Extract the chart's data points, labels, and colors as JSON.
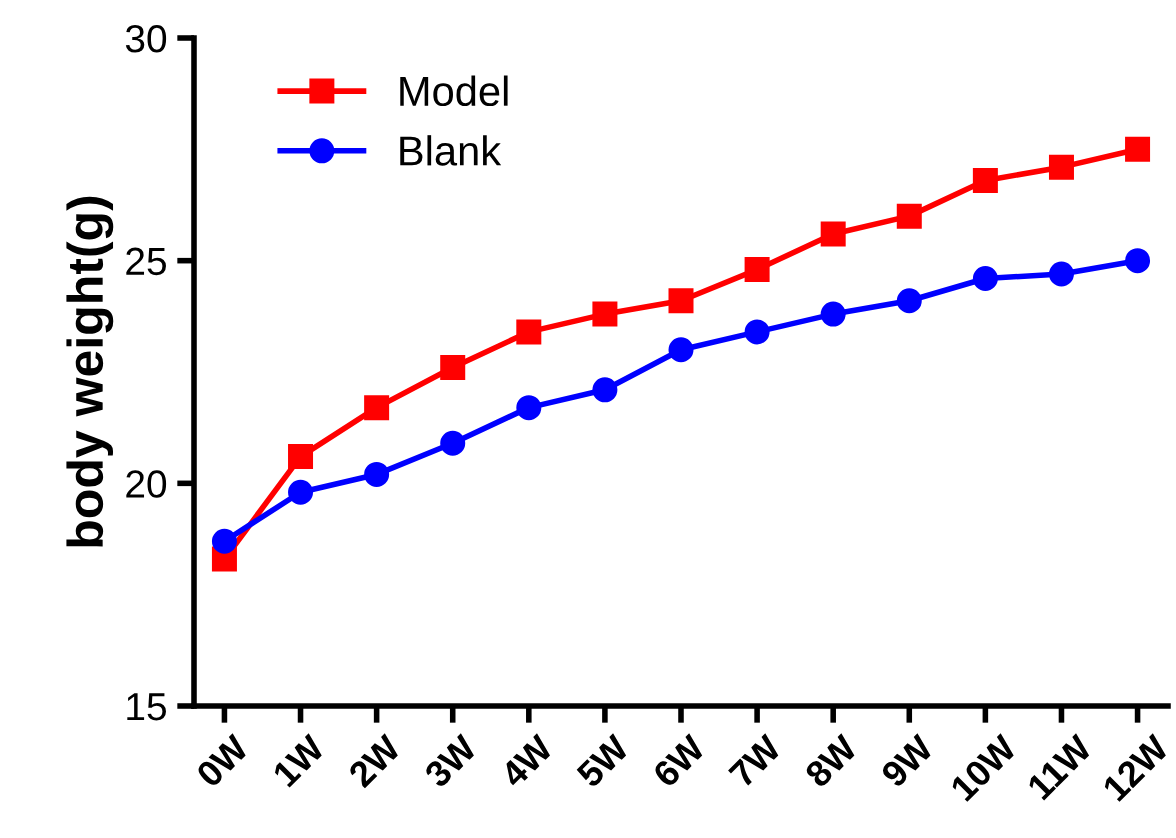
{
  "chart_data": {
    "type": "line",
    "ylabel": "body weight(g)",
    "categories": [
      "0W",
      "1W",
      "2W",
      "3W",
      "4W",
      "5W",
      "6W",
      "7W",
      "8W",
      "9W",
      "10W",
      "11W",
      "12W"
    ],
    "ylim": [
      15,
      30
    ],
    "yticks": [
      15,
      20,
      25,
      30
    ],
    "grid": false,
    "legend": "top left",
    "line_style": "solid",
    "series": [
      {
        "name": "Model",
        "color": "#ff0000",
        "marker": "square",
        "values": [
          18.3,
          20.6,
          21.7,
          22.6,
          23.4,
          23.8,
          24.1,
          24.8,
          25.6,
          26.0,
          26.8,
          27.1,
          27.5
        ]
      },
      {
        "name": "Blank",
        "color": "#0000ff",
        "marker": "circle",
        "values": [
          18.7,
          19.8,
          20.2,
          20.9,
          21.7,
          22.1,
          23.0,
          23.4,
          23.8,
          24.1,
          24.6,
          24.7,
          25.0
        ]
      }
    ]
  }
}
